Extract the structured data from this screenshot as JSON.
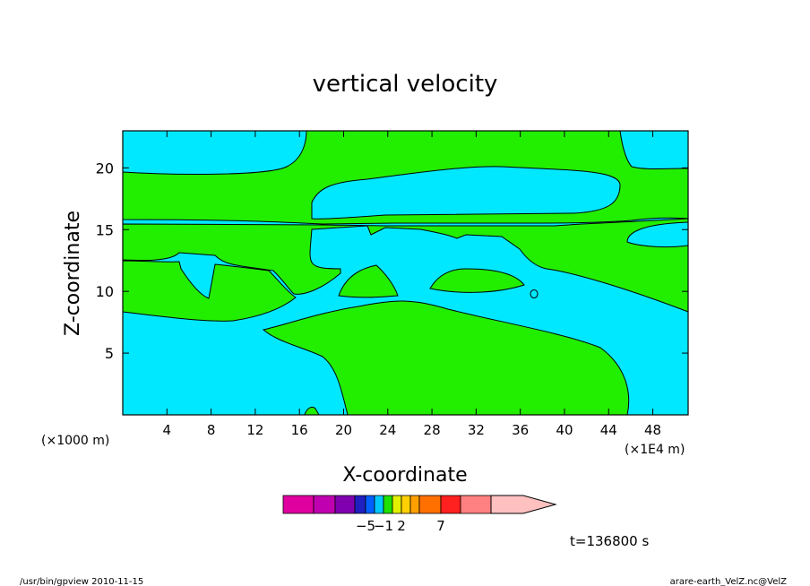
{
  "chart_data": {
    "type": "heatmap",
    "title": "vertical velocity",
    "xlabel": "X-coordinate",
    "ylabel": "Z-coordinate",
    "x_scale_note_left": "(×1000 m)",
    "x_scale_note_right": "(×1E4 m)",
    "xlim": [
      0,
      51.2
    ],
    "ylim": [
      0,
      23
    ],
    "xticks": [
      4,
      8,
      12,
      16,
      20,
      24,
      28,
      32,
      36,
      40,
      44,
      48
    ],
    "yticks": [
      5,
      10,
      15,
      20
    ],
    "time_label": "t=136800 s",
    "fill_colors": {
      "background_region": "#00e8ff",
      "foreground_region": "#22ee00"
    },
    "colorbar": {
      "colors": [
        "#e000a0",
        "#c000b0",
        "#8000b0",
        "#2020c0",
        "#0060ff",
        "#00c8ff",
        "#20e000",
        "#e0f000",
        "#ffd000",
        "#ffa000",
        "#ff7000",
        "#ff2020",
        "#ff8080",
        "#ffc0c0"
      ],
      "labels": [
        {
          "text": "−5",
          "index": 3
        },
        {
          "text": "−1",
          "index": 5
        },
        {
          "text": "2",
          "index": 7
        },
        {
          "text": "7",
          "index": 10
        }
      ]
    }
  },
  "footer": {
    "left": "/usr/bin/gpview   2010-11-15",
    "right": "arare-earth_VelZ.nc@VelZ"
  }
}
